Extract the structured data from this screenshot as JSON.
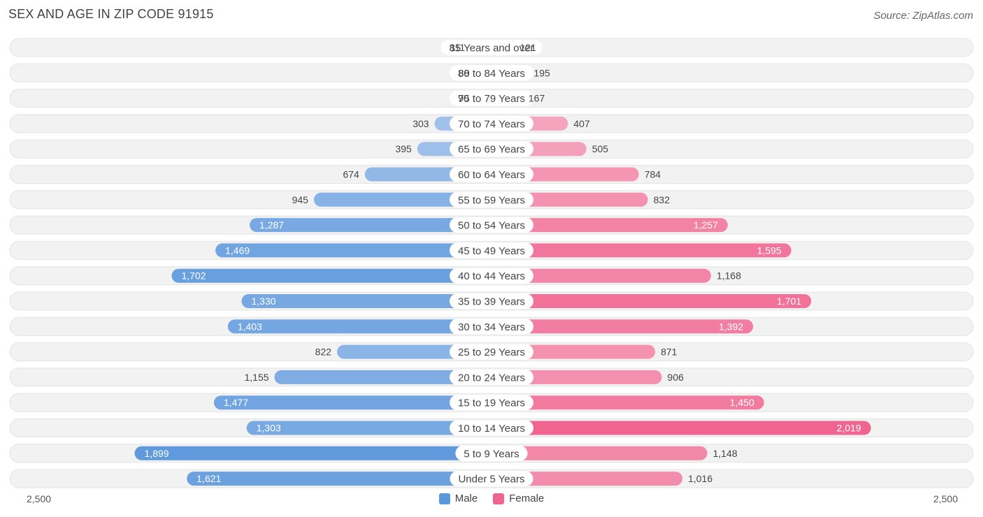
{
  "header": {
    "title": "SEX AND AGE IN ZIP CODE 91915",
    "source": "Source: ZipAtlas.com"
  },
  "legend": {
    "male_label": "Male",
    "female_label": "Female"
  },
  "axis": {
    "left_label": "2,500",
    "right_label": "2,500"
  },
  "colors": {
    "male_light": "#a9c7ec",
    "male_dark": "#5b97dc",
    "female_light": "#f6b0c6",
    "female_dark": "#f06590",
    "row_background": "#f2f2f2"
  },
  "chart_data": {
    "type": "bar",
    "orientation": "horizontal-diverging",
    "title": "SEX AND AGE IN ZIP CODE 91915",
    "xlim": [
      -2500,
      2500
    ],
    "categories": [
      "85 Years and over",
      "80 to 84 Years",
      "75 to 79 Years",
      "70 to 74 Years",
      "65 to 69 Years",
      "60 to 64 Years",
      "55 to 59 Years",
      "50 to 54 Years",
      "45 to 49 Years",
      "40 to 44 Years",
      "35 to 39 Years",
      "30 to 34 Years",
      "25 to 29 Years",
      "20 to 24 Years",
      "15 to 19 Years",
      "10 to 14 Years",
      "5 to 9 Years",
      "Under 5 Years"
    ],
    "series": [
      {
        "name": "Male",
        "values": [
          111,
          88,
          90,
          303,
          395,
          674,
          945,
          1287,
          1469,
          1702,
          1330,
          1403,
          822,
          1155,
          1477,
          1303,
          1899,
          1621
        ]
      },
      {
        "name": "Female",
        "values": [
          121,
          195,
          167,
          407,
          505,
          784,
          832,
          1257,
          1595,
          1168,
          1701,
          1392,
          871,
          906,
          1450,
          2019,
          1148,
          1016
        ]
      }
    ],
    "legend_position": "bottom-center"
  }
}
